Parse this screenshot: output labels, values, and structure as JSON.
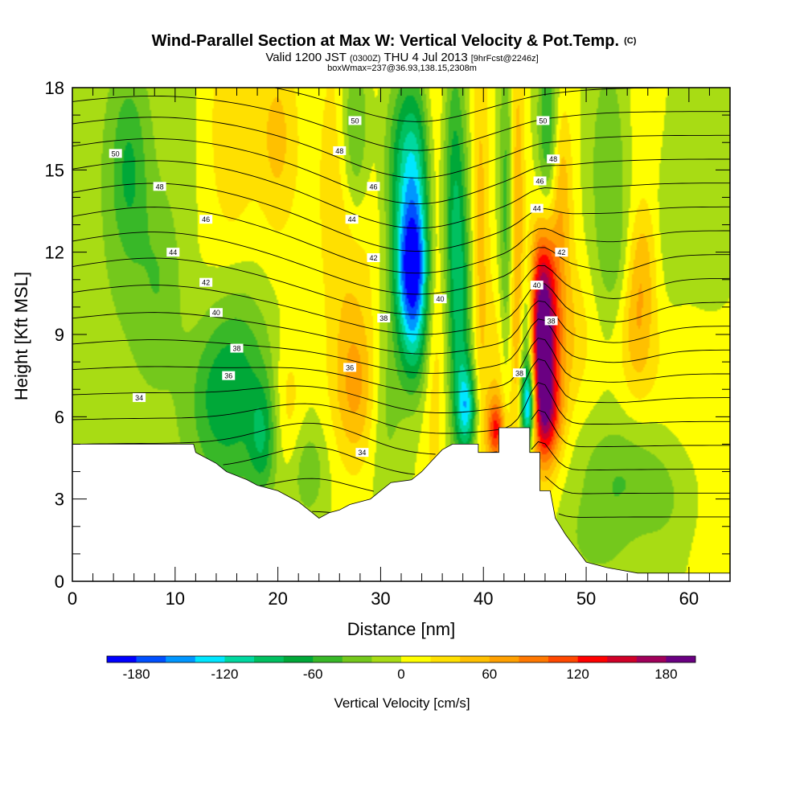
{
  "chart_data": {
    "type": "heatmap",
    "title": "Wind-Parallel Section at Max W: Vertical Velocity & Pot.Temp.",
    "title_tag": "(C)",
    "subtitle_pre": "Valid 1200 JST",
    "subtitle_small": "(0300Z)",
    "subtitle_mid": "THU 4 Jul 2013",
    "subtitle_tail": "[9hrFcst@2246z]",
    "subtitle2": "boxWmax=237@36.93,138.15,2308m",
    "xlabel": "Distance [nm]",
    "ylabel": "Height [Kft MSL]",
    "xlim": [
      0,
      64
    ],
    "ylim": [
      0,
      18
    ],
    "xticks": [
      0,
      10,
      20,
      30,
      40,
      50,
      60
    ],
    "yticks": [
      0,
      3,
      6,
      9,
      12,
      15,
      18
    ],
    "colorbar": {
      "label": "Vertical Velocity [cm/s]",
      "min": -200,
      "max": 200,
      "tick_values": [
        -180,
        -120,
        -60,
        0,
        60,
        120,
        180
      ],
      "tick_labels": [
        "-180",
        "-120",
        "-60",
        "0",
        "60",
        "120",
        "180"
      ],
      "colors": [
        "#0000ff",
        "#0050ff",
        "#0096ff",
        "#00e6ff",
        "#00d8a0",
        "#00c060",
        "#00a838",
        "#38b828",
        "#74c81c",
        "#a8dc14",
        "#ffff00",
        "#ffe000",
        "#ffc000",
        "#ffa000",
        "#ff7800",
        "#ff4800",
        "#ff0000",
        "#d00028",
        "#a0005a",
        "#6a0082"
      ]
    },
    "terrain": [
      [
        0,
        5
      ],
      [
        1,
        5
      ],
      [
        11.8,
        5
      ],
      [
        12,
        4.7
      ],
      [
        13,
        4.5
      ],
      [
        14,
        4.3
      ],
      [
        15,
        4.0
      ],
      [
        17,
        3.7
      ],
      [
        18,
        3.5
      ],
      [
        20,
        3.3
      ],
      [
        22,
        2.9
      ],
      [
        23,
        2.6
      ],
      [
        24,
        2.3
      ],
      [
        25,
        2.5
      ],
      [
        26,
        2.6
      ],
      [
        27,
        2.8
      ],
      [
        29,
        3.0
      ],
      [
        30,
        3.3
      ],
      [
        31,
        3.6
      ],
      [
        33,
        3.7
      ],
      [
        34,
        4.0
      ],
      [
        35,
        4.4
      ],
      [
        36,
        4.8
      ],
      [
        37,
        5.0
      ],
      [
        38,
        5.0
      ],
      [
        39.5,
        5.0
      ],
      [
        39.5,
        4.7
      ],
      [
        41.5,
        4.7
      ],
      [
        41.5,
        5.6
      ],
      [
        44.5,
        5.6
      ],
      [
        44.5,
        4.7
      ],
      [
        45.5,
        4.7
      ],
      [
        45.5,
        3.3
      ],
      [
        46.5,
        3.3
      ],
      [
        47,
        2.3
      ],
      [
        48,
        1.7
      ],
      [
        49,
        1.2
      ],
      [
        50,
        0.7
      ],
      [
        52,
        0.5
      ],
      [
        55,
        0.3
      ],
      [
        64,
        0.3
      ]
    ],
    "w_features": [
      {
        "x": 20,
        "y": 13,
        "sx": 60,
        "sy": 6,
        "amp": 4
      },
      {
        "x": 2,
        "y": 8.5,
        "sx": 10,
        "sy": 12,
        "amp": -20
      },
      {
        "x": 5.5,
        "y": 15,
        "sx": 1.3,
        "sy": 2.4,
        "amp": -52
      },
      {
        "x": 8.5,
        "y": 11,
        "sx": 1.6,
        "sy": 2.2,
        "amp": -30
      },
      {
        "x": 15.5,
        "y": 16.5,
        "sx": 1.8,
        "sy": 3.2,
        "amp": 42
      },
      {
        "x": 20,
        "y": 16.2,
        "sx": 1.4,
        "sy": 2.5,
        "amp": 45
      },
      {
        "x": 15,
        "y": 11,
        "sx": 3.5,
        "sy": 2.0,
        "amp": 18
      },
      {
        "x": 16,
        "y": 7.5,
        "sx": 2.4,
        "sy": 3.0,
        "amp": -65
      },
      {
        "x": 13.5,
        "y": 6.5,
        "sx": 1.8,
        "sy": 1.8,
        "amp": -25
      },
      {
        "x": 18.5,
        "y": 5.2,
        "sx": 0.9,
        "sy": 1.4,
        "amp": -55
      },
      {
        "x": 21,
        "y": 6.5,
        "sx": 1.0,
        "sy": 1.8,
        "amp": 32
      },
      {
        "x": 23,
        "y": 4.0,
        "sx": 1.2,
        "sy": 1.2,
        "amp": -35
      },
      {
        "x": 26.8,
        "y": 14.5,
        "sx": 2.0,
        "sy": 5.0,
        "amp": 42
      },
      {
        "x": 27.5,
        "y": 16.5,
        "sx": 1.0,
        "sy": 2.5,
        "amp": -78
      },
      {
        "x": 27.6,
        "y": 7.0,
        "sx": 1.5,
        "sy": 2.0,
        "amp": 55
      },
      {
        "x": 30.5,
        "y": 6.5,
        "sx": 1.2,
        "sy": 2.5,
        "amp": -30
      },
      {
        "x": 32.5,
        "y": 15.5,
        "sx": 1.6,
        "sy": 2.2,
        "amp": -60
      },
      {
        "x": 33.0,
        "y": 11.5,
        "sx": 1.2,
        "sy": 1.6,
        "amp": -130
      },
      {
        "x": 33.3,
        "y": 13.8,
        "sx": 1.3,
        "sy": 2.8,
        "amp": -80
      },
      {
        "x": 33.2,
        "y": 9.0,
        "sx": 1.1,
        "sy": 1.7,
        "amp": -80
      },
      {
        "x": 35.2,
        "y": 12.0,
        "sx": 0.8,
        "sy": 7.0,
        "amp": 42
      },
      {
        "x": 37.2,
        "y": 14.0,
        "sx": 0.8,
        "sy": 4.0,
        "amp": -70
      },
      {
        "x": 37.8,
        "y": 9.0,
        "sx": 0.8,
        "sy": 3.5,
        "amp": -65
      },
      {
        "x": 38.4,
        "y": 6.3,
        "sx": 0.7,
        "sy": 1.1,
        "amp": -100
      },
      {
        "x": 39.7,
        "y": 12.5,
        "sx": 0.6,
        "sy": 6.0,
        "amp": 45
      },
      {
        "x": 41.5,
        "y": 7.0,
        "sx": 0.9,
        "sy": 2.8,
        "amp": 35
      },
      {
        "x": 41.2,
        "y": 5.5,
        "sx": 0.6,
        "sy": 0.8,
        "amp": 100
      },
      {
        "x": 42.2,
        "y": 13.0,
        "sx": 0.5,
        "sy": 5.0,
        "amp": -55
      },
      {
        "x": 43.3,
        "y": 12.0,
        "sx": 0.5,
        "sy": 6.0,
        "amp": 60
      },
      {
        "x": 44.2,
        "y": 8.5,
        "sx": 0.5,
        "sy": 2.2,
        "amp": -80
      },
      {
        "x": 44.4,
        "y": 6.4,
        "sx": 0.5,
        "sy": 1.0,
        "amp": -150
      },
      {
        "x": 45.8,
        "y": 8.0,
        "sx": 0.9,
        "sy": 2.3,
        "amp": 160
      },
      {
        "x": 45.8,
        "y": 11.0,
        "sx": 0.9,
        "sy": 1.8,
        "amp": 85
      },
      {
        "x": 46.3,
        "y": 6.0,
        "sx": 1.1,
        "sy": 1.3,
        "amp": 80
      },
      {
        "x": 47.5,
        "y": 9.0,
        "sx": 2.0,
        "sy": 2.0,
        "amp": 45
      },
      {
        "x": 46.3,
        "y": 16.5,
        "sx": 0.7,
        "sy": 2.5,
        "amp": -70
      },
      {
        "x": 47.5,
        "y": 14.0,
        "sx": 0.8,
        "sy": 2.5,
        "amp": 55
      },
      {
        "x": 52.2,
        "y": 15.0,
        "sx": 1.4,
        "sy": 3.2,
        "amp": -40
      },
      {
        "x": 53.0,
        "y": 11.5,
        "sx": 1.3,
        "sy": 1.5,
        "amp": -20
      },
      {
        "x": 55.0,
        "y": 9.5,
        "sx": 1.2,
        "sy": 2.0,
        "amp": 55
      },
      {
        "x": 55.5,
        "y": 12.0,
        "sx": 1.0,
        "sy": 1.3,
        "amp": 28
      },
      {
        "x": 56.5,
        "y": 16.5,
        "sx": 1.5,
        "sy": 2.5,
        "amp": 22
      },
      {
        "x": 58.0,
        "y": 14.5,
        "sx": 1.3,
        "sy": 3.0,
        "amp": -24
      },
      {
        "x": 61.5,
        "y": 14.0,
        "sx": 2.0,
        "sy": 4.0,
        "amp": -18
      },
      {
        "x": 53.0,
        "y": 3.8,
        "sx": 2.8,
        "sy": 1.5,
        "amp": -38
      },
      {
        "x": 58.0,
        "y": 3.0,
        "sx": 2.5,
        "sy": 1.8,
        "amp": -20
      },
      {
        "x": 51.0,
        "y": 1.5,
        "sx": 2.0,
        "sy": 1.0,
        "amp": -25
      },
      {
        "x": 62.0,
        "y": 1.0,
        "sx": 2.0,
        "sy": 1.5,
        "amp": 10
      },
      {
        "x": 60.0,
        "y": 7.5,
        "sx": 3.0,
        "sy": 2.0,
        "amp": 18
      },
      {
        "x": 62.0,
        "y": 4.5,
        "sx": 2.0,
        "sy": 2.0,
        "amp": 8
      }
    ],
    "theta_contours": {
      "levels": [
        34,
        35,
        36,
        37,
        38,
        39,
        40,
        41,
        42,
        43,
        44,
        45,
        46,
        47,
        48,
        49,
        50,
        51,
        52
      ],
      "labels": [
        {
          "text": "34",
          "x": 6.5,
          "y": 6.7
        },
        {
          "text": "34",
          "x": 28.2,
          "y": 4.7
        },
        {
          "text": "36",
          "x": 15.2,
          "y": 7.5
        },
        {
          "text": "36",
          "x": 27.0,
          "y": 7.8
        },
        {
          "text": "38",
          "x": 16.0,
          "y": 8.5
        },
        {
          "text": "38",
          "x": 30.3,
          "y": 9.6
        },
        {
          "text": "38",
          "x": 43.5,
          "y": 7.6
        },
        {
          "text": "38",
          "x": 46.6,
          "y": 9.5
        },
        {
          "text": "40",
          "x": 14.0,
          "y": 9.8
        },
        {
          "text": "40",
          "x": 35.8,
          "y": 10.3
        },
        {
          "text": "40",
          "x": 45.2,
          "y": 10.8
        },
        {
          "text": "42",
          "x": 13.0,
          "y": 10.9
        },
        {
          "text": "42",
          "x": 29.3,
          "y": 11.8
        },
        {
          "text": "42",
          "x": 47.6,
          "y": 12.0
        },
        {
          "text": "44",
          "x": 9.8,
          "y": 12.0
        },
        {
          "text": "44",
          "x": 27.2,
          "y": 13.2
        },
        {
          "text": "44",
          "x": 45.2,
          "y": 13.6
        },
        {
          "text": "46",
          "x": 13.0,
          "y": 13.2
        },
        {
          "text": "46",
          "x": 29.3,
          "y": 14.4
        },
        {
          "text": "46",
          "x": 45.5,
          "y": 14.6
        },
        {
          "text": "48",
          "x": 8.5,
          "y": 14.4
        },
        {
          "text": "48",
          "x": 26.0,
          "y": 15.7
        },
        {
          "text": "48",
          "x": 46.8,
          "y": 15.4
        },
        {
          "text": "50",
          "x": 4.2,
          "y": 15.6
        },
        {
          "text": "50",
          "x": 27.5,
          "y": 16.8
        },
        {
          "text": "50",
          "x": 45.8,
          "y": 16.8
        }
      ]
    }
  }
}
